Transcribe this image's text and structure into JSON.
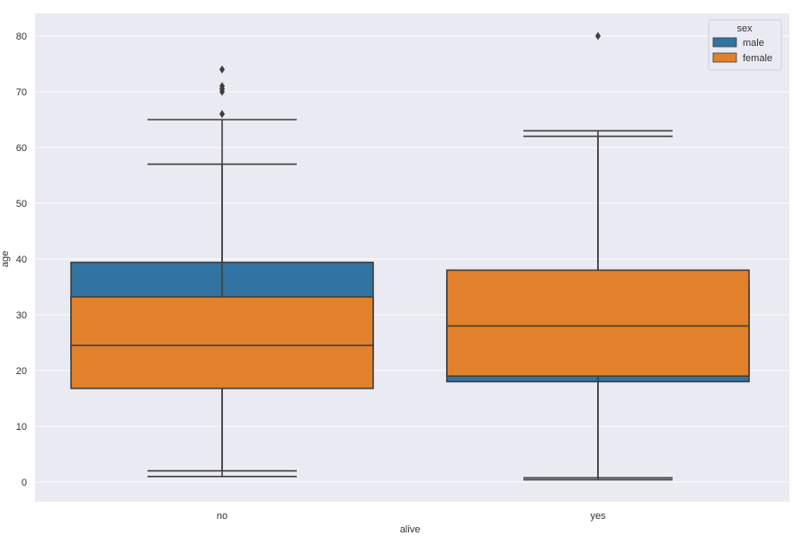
{
  "chart_data": {
    "type": "box",
    "xlabel": "alive",
    "ylabel": "age",
    "categories": [
      "no",
      "yes"
    ],
    "ylim": [
      -3.5,
      84
    ],
    "yticks": [
      0,
      10,
      20,
      30,
      40,
      50,
      60,
      70,
      80
    ],
    "grid": true,
    "legend": {
      "title": "sex",
      "placement": "top-right"
    },
    "series": [
      {
        "name": "male",
        "color": "#3274a1",
        "boxes": [
          {
            "category": "no",
            "whislo": 1,
            "q1": 21.9,
            "median": 29,
            "q3": 39.4,
            "whishi": 65,
            "fliers": [
              66,
              70,
              70.5,
              71,
              74
            ]
          },
          {
            "category": "yes",
            "whislo": 0.42,
            "q1": 18,
            "median": 28,
            "q3": 36,
            "whishi": 62,
            "fliers": [
              80
            ]
          }
        ]
      },
      {
        "name": "female",
        "color": "#e1812c",
        "boxes": [
          {
            "category": "no",
            "whislo": 2,
            "q1": 16.8,
            "median": 24.5,
            "q3": 33.2,
            "whishi": 57,
            "fliers": []
          },
          {
            "category": "yes",
            "whislo": 0.75,
            "q1": 19,
            "median": 28,
            "q3": 38,
            "whishi": 63,
            "fliers": []
          }
        ]
      }
    ]
  }
}
